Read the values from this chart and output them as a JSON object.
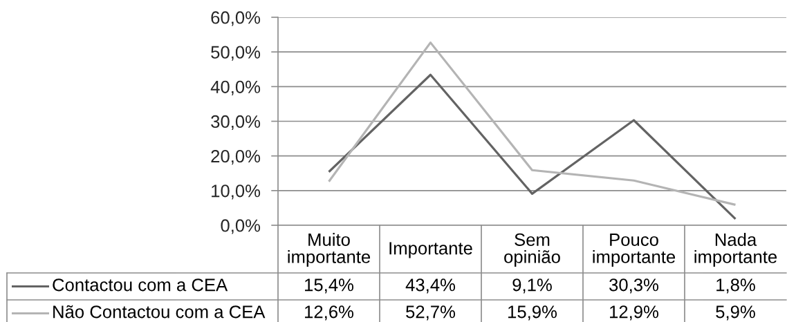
{
  "chart_data": {
    "type": "line",
    "categories": [
      "Muito importante",
      "Importante",
      "Sem opinião",
      "Pouco importante",
      "Nada importante"
    ],
    "series": [
      {
        "name": "Contactou com a CEA",
        "color": "#636363",
        "values": [
          15.4,
          43.4,
          9.1,
          30.3,
          1.8
        ],
        "value_labels": [
          "15,4%",
          "43,4%",
          "9,1%",
          "30,3%",
          "1,8%"
        ]
      },
      {
        "name": "Não Contactou com a CEA",
        "color": "#b4b4b4",
        "values": [
          12.6,
          52.7,
          15.9,
          12.9,
          5.9
        ],
        "value_labels": [
          "12,6%",
          "52,7%",
          "15,9%",
          "12,9%",
          "5,9%"
        ]
      }
    ],
    "ylim": [
      0,
      60
    ],
    "yticks": [
      {
        "value": 0,
        "label": "0,0%"
      },
      {
        "value": 10,
        "label": "10,0%"
      },
      {
        "value": 20,
        "label": "20,0%"
      },
      {
        "value": 30,
        "label": "30,0%"
      },
      {
        "value": 40,
        "label": "40,0%"
      },
      {
        "value": 50,
        "label": "50,0%"
      },
      {
        "value": 60,
        "label": "60,0%"
      }
    ],
    "grid": "y",
    "legend": "bottom"
  }
}
